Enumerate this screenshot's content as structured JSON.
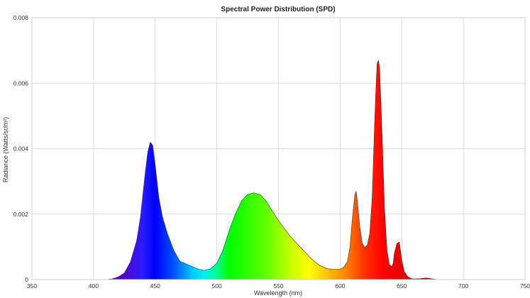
{
  "chart_data": {
    "type": "area",
    "title": "Spectral Power Distribution (SPD)",
    "xlabel": "Wavelength (nm)",
    "ylabel": "Radiance (Watts/sr/m²)",
    "xlim": [
      350,
      750
    ],
    "ylim": [
      0,
      0.008
    ],
    "xticks": [
      350,
      400,
      450,
      500,
      550,
      600,
      650,
      700,
      750
    ],
    "yticks": [
      0,
      0.002,
      0.004,
      0.006,
      0.008
    ],
    "ytick_labels": [
      "0",
      "0.002",
      "0.004",
      "0.006",
      "0.008"
    ],
    "grid": true,
    "fill": "visible-spectrum gradient",
    "series": [
      {
        "x": [
          380,
          410,
          415,
          420,
          425,
          430,
          435,
          438,
          440,
          442,
          444,
          446,
          448,
          450,
          453,
          456,
          460,
          465,
          470,
          475,
          480,
          485,
          490,
          495,
          500,
          505,
          510,
          515,
          520,
          525,
          530,
          535,
          540,
          545,
          550,
          555,
          560,
          565,
          570,
          575,
          580,
          585,
          590,
          595,
          600,
          603,
          606,
          608,
          610,
          612,
          613,
          614,
          616,
          618,
          620,
          622,
          624,
          626,
          628,
          629,
          630,
          631,
          632,
          634,
          636,
          638,
          640,
          642,
          643,
          644,
          646,
          648,
          650,
          652,
          655,
          658,
          660,
          665,
          670,
          675,
          680,
          700,
          750
        ],
        "y": [
          0,
          0,
          2e-05,
          8e-05,
          0.0002,
          0.00055,
          0.0012,
          0.0019,
          0.0026,
          0.0033,
          0.0039,
          0.0042,
          0.0041,
          0.0035,
          0.0025,
          0.0019,
          0.0014,
          0.0009,
          0.00056,
          0.00048,
          0.0004,
          0.00032,
          0.00028,
          0.00033,
          0.0005,
          0.0009,
          0.0015,
          0.002,
          0.0024,
          0.0026,
          0.00265,
          0.0026,
          0.0024,
          0.0021,
          0.0018,
          0.00155,
          0.0013,
          0.0011,
          0.0009,
          0.0007,
          0.00052,
          0.0004,
          0.00033,
          0.00031,
          0.00032,
          0.00038,
          0.00055,
          0.001,
          0.0019,
          0.0026,
          0.0027,
          0.0024,
          0.0016,
          0.0011,
          0.00098,
          0.00105,
          0.0014,
          0.0025,
          0.0048,
          0.0058,
          0.0066,
          0.0067,
          0.0065,
          0.0045,
          0.0022,
          0.0009,
          0.00045,
          0.0004,
          0.0005,
          0.0008,
          0.0011,
          0.00115,
          0.0006,
          0.00025,
          8e-05,
          3e-05,
          2e-05,
          3e-05,
          5e-05,
          2e-05,
          0,
          0,
          0
        ]
      }
    ]
  }
}
